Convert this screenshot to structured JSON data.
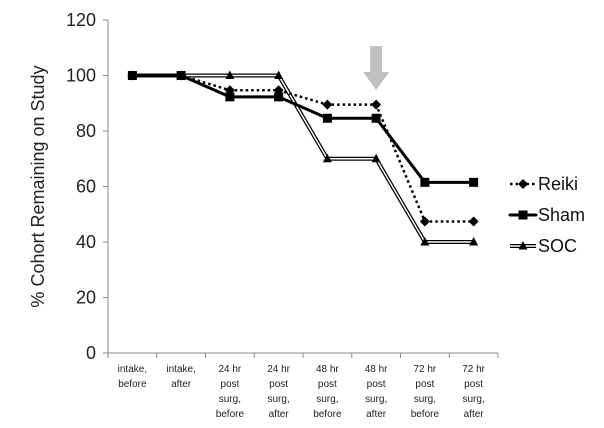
{
  "chart_data": {
    "type": "line",
    "title": "",
    "xlabel": "",
    "ylabel": "% Cohort Remaining on Study",
    "ylim": [
      0,
      120
    ],
    "yticks": [
      0,
      20,
      40,
      60,
      80,
      100,
      120
    ],
    "grid": false,
    "legend_position": "right",
    "categories": [
      [
        "intake,",
        "before"
      ],
      [
        "intake,",
        "after"
      ],
      [
        "24 hr",
        "post",
        "surg,",
        "before"
      ],
      [
        "24 hr",
        "post",
        "surg,",
        "after"
      ],
      [
        "48 hr",
        "post",
        "surg,",
        "before"
      ],
      [
        "48 hr",
        "post",
        "surg,",
        "after"
      ],
      [
        "72 hr",
        "post",
        "surg,",
        "before"
      ],
      [
        "72 hr",
        "post",
        "surg,",
        "after"
      ]
    ],
    "series": [
      {
        "name": "Reiki",
        "values": [
          100,
          100,
          94.7,
          94.7,
          89.5,
          89.5,
          47.4,
          47.4
        ],
        "style": "dotted",
        "marker": "diamond",
        "color": "#000000"
      },
      {
        "name": "Sham",
        "values": [
          100,
          100,
          92.3,
          92.3,
          84.6,
          84.6,
          61.5,
          61.5
        ],
        "style": "solid",
        "marker": "square",
        "color": "#000000"
      },
      {
        "name": "SOC",
        "values": [
          100,
          100,
          100,
          100,
          70,
          70,
          40,
          40
        ],
        "style": "double",
        "marker": "triangle",
        "color": "#000000"
      }
    ],
    "annotation": {
      "type": "arrow",
      "category_index": 5,
      "color": "#c0c0c0"
    }
  }
}
